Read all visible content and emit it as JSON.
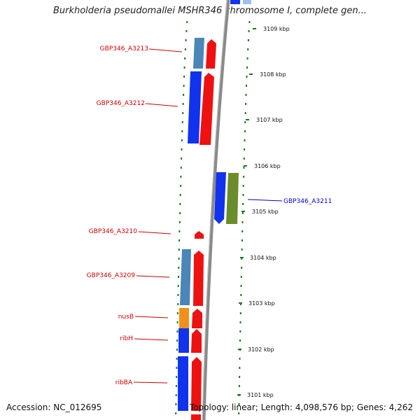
{
  "title": "Burkholderia pseudomallei MSHR346 chromosome I, complete gen...",
  "footer": {
    "accession": "Accession: NC_012695",
    "topology": "Topology: linear; Length: 4,098,576 bp; Genes: 4,262"
  },
  "ruler": {
    "ticks": [
      "3109 kbp",
      "3108 kbp",
      "3107 kbp",
      "3106 kbp",
      "3105 kbp",
      "3104 kbp",
      "3103 kbp",
      "3102 kbp",
      "3101 kbp"
    ]
  },
  "genes": [
    {
      "name": "GBP346_A3213",
      "color": "#cc0000"
    },
    {
      "name": "GBP346_A3212",
      "color": "#cc0000"
    },
    {
      "name": "GBP346_A3211",
      "color": "#0000cc"
    },
    {
      "name": "GBP346_A3210",
      "color": "#cc0000"
    },
    {
      "name": "GBP346_A3209",
      "color": "#cc0000"
    },
    {
      "name": "nusB",
      "color": "#cc0000"
    },
    {
      "name": "ribH",
      "color": "#cc0000"
    },
    {
      "name": "ribBA",
      "color": "#cc0000"
    }
  ],
  "colors": {
    "cds_red": "#ee1111",
    "cds_blue": "#1133ee",
    "cds_steelblue": "#4a86b8",
    "cds_orange": "#f0901a",
    "cds_green": "#6b8c2a",
    "tick_green": "#1a7a1a",
    "axis_grey": "#888888"
  }
}
